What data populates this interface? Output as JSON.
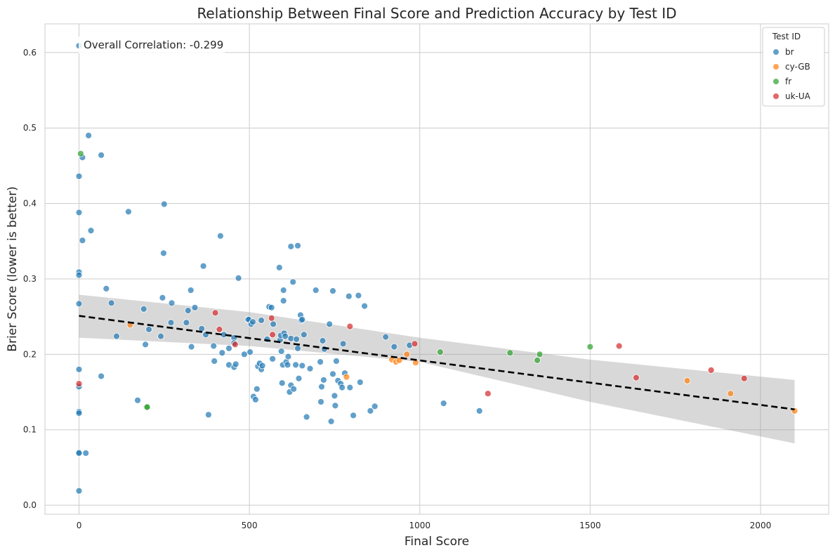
{
  "chart_data": {
    "type": "scatter",
    "title": "Relationship Between Final Score and Prediction Accuracy by Test ID",
    "xlabel": "Final Score",
    "ylabel": "Brier Score (lower is better)",
    "xlim": [
      -100,
      2200
    ],
    "ylim": [
      -0.012,
      0.638
    ],
    "xticks": [
      0,
      500,
      1000,
      1500,
      2000
    ],
    "xtick_labels": [
      "0",
      "500",
      "1000",
      "1500",
      "2000"
    ],
    "yticks": [
      0.0,
      0.1,
      0.2,
      0.3,
      0.4,
      0.5,
      0.6
    ],
    "ytick_labels": [
      "0.0",
      "0.1",
      "0.2",
      "0.3",
      "0.4",
      "0.5",
      "0.6"
    ],
    "grid": true,
    "annotation": "Overall Correlation: -0.299",
    "legend": {
      "title": "Test ID",
      "placement": "top-right"
    },
    "series": [
      {
        "name": "br",
        "color": "#1f77b4",
        "points": [
          [
            0,
            0.609
          ],
          [
            0,
            0.436
          ],
          [
            0,
            0.388
          ],
          [
            0,
            0.309
          ],
          [
            0,
            0.305
          ],
          [
            0,
            0.267
          ],
          [
            0,
            0.18
          ],
          [
            0,
            0.157
          ],
          [
            0,
            0.124
          ],
          [
            0,
            0.122
          ],
          [
            0,
            0.07
          ],
          [
            0,
            0.069
          ],
          [
            0,
            0.019
          ],
          [
            10,
            0.461
          ],
          [
            10,
            0.351
          ],
          [
            20,
            0.069
          ],
          [
            28,
            0.49
          ],
          [
            35,
            0.364
          ],
          [
            65,
            0.464
          ],
          [
            65,
            0.171
          ],
          [
            80,
            0.287
          ],
          [
            95,
            0.268
          ],
          [
            110,
            0.224
          ],
          [
            145,
            0.389
          ],
          [
            172,
            0.139
          ],
          [
            190,
            0.26
          ],
          [
            195,
            0.213
          ],
          [
            205,
            0.233
          ],
          [
            240,
            0.224
          ],
          [
            245,
            0.275
          ],
          [
            248,
            0.334
          ],
          [
            250,
            0.399
          ],
          [
            270,
            0.242
          ],
          [
            272,
            0.268
          ],
          [
            315,
            0.242
          ],
          [
            320,
            0.258
          ],
          [
            328,
            0.285
          ],
          [
            330,
            0.21
          ],
          [
            340,
            0.262
          ],
          [
            360,
            0.234
          ],
          [
            365,
            0.317
          ],
          [
            372,
            0.226
          ],
          [
            380,
            0.12
          ],
          [
            395,
            0.211
          ],
          [
            397,
            0.191
          ],
          [
            415,
            0.357
          ],
          [
            420,
            0.202
          ],
          [
            425,
            0.226
          ],
          [
            440,
            0.186
          ],
          [
            440,
            0.208
          ],
          [
            455,
            0.222
          ],
          [
            455,
            0.183
          ],
          [
            455,
            0.215
          ],
          [
            460,
            0.187
          ],
          [
            468,
            0.301
          ],
          [
            485,
            0.2
          ],
          [
            495,
            0.246
          ],
          [
            498,
            0.246
          ],
          [
            502,
            0.203
          ],
          [
            505,
            0.24
          ],
          [
            510,
            0.243
          ],
          [
            512,
            0.144
          ],
          [
            518,
            0.14
          ],
          [
            522,
            0.154
          ],
          [
            525,
            0.184
          ],
          [
            530,
            0.188
          ],
          [
            535,
            0.245
          ],
          [
            535,
            0.18
          ],
          [
            538,
            0.185
          ],
          [
            552,
            0.22
          ],
          [
            558,
            0.263
          ],
          [
            565,
            0.262
          ],
          [
            568,
            0.194
          ],
          [
            570,
            0.24
          ],
          [
            588,
            0.315
          ],
          [
            590,
            0.219
          ],
          [
            592,
            0.225
          ],
          [
            594,
            0.204
          ],
          [
            596,
            0.162
          ],
          [
            598,
            0.186
          ],
          [
            600,
            0.285
          ],
          [
            600,
            0.271
          ],
          [
            602,
            0.228
          ],
          [
            605,
            0.224
          ],
          [
            608,
            0.19
          ],
          [
            612,
            0.186
          ],
          [
            614,
            0.197
          ],
          [
            618,
            0.15
          ],
          [
            622,
            0.343
          ],
          [
            622,
            0.159
          ],
          [
            622,
            0.221
          ],
          [
            628,
            0.296
          ],
          [
            630,
            0.154
          ],
          [
            636,
            0.186
          ],
          [
            638,
            0.22
          ],
          [
            642,
            0.208
          ],
          [
            642,
            0.344
          ],
          [
            645,
            0.168
          ],
          [
            650,
            0.252
          ],
          [
            652,
            0.245
          ],
          [
            655,
            0.185
          ],
          [
            655,
            0.246
          ],
          [
            660,
            0.226
          ],
          [
            668,
            0.117
          ],
          [
            678,
            0.181
          ],
          [
            695,
            0.285
          ],
          [
            708,
            0.19
          ],
          [
            710,
            0.137
          ],
          [
            712,
            0.157
          ],
          [
            715,
            0.218
          ],
          [
            718,
            0.166
          ],
          [
            720,
            0.207
          ],
          [
            735,
            0.24
          ],
          [
            740,
            0.111
          ],
          [
            745,
            0.174
          ],
          [
            745,
            0.284
          ],
          [
            750,
            0.145
          ],
          [
            752,
            0.132
          ],
          [
            755,
            0.191
          ],
          [
            760,
            0.165
          ],
          [
            768,
            0.161
          ],
          [
            772,
            0.156
          ],
          [
            775,
            0.214
          ],
          [
            780,
            0.175
          ],
          [
            792,
            0.277
          ],
          [
            795,
            0.156
          ],
          [
            805,
            0.119
          ],
          [
            820,
            0.278
          ],
          [
            825,
            0.163
          ],
          [
            838,
            0.264
          ],
          [
            855,
            0.125
          ],
          [
            868,
            0.131
          ],
          [
            900,
            0.223
          ],
          [
            925,
            0.21
          ],
          [
            970,
            0.212
          ],
          [
            1070,
            0.135
          ],
          [
            1175,
            0.125
          ]
        ]
      },
      {
        "name": "cy-GB",
        "color": "#ff7f0e",
        "points": [
          [
            150,
            0.239
          ],
          [
            785,
            0.17
          ],
          [
            918,
            0.193
          ],
          [
            930,
            0.19
          ],
          [
            940,
            0.192
          ],
          [
            962,
            0.2
          ],
          [
            988,
            0.189
          ],
          [
            1785,
            0.165
          ],
          [
            1912,
            0.148
          ],
          [
            2100,
            0.125
          ]
        ]
      },
      {
        "name": "fr",
        "color": "#2ca02c",
        "points": [
          [
            5,
            0.466
          ],
          [
            198,
            0.13
          ],
          [
            200,
            0.13
          ],
          [
            1060,
            0.203
          ],
          [
            1265,
            0.202
          ],
          [
            1345,
            0.192
          ],
          [
            1352,
            0.2
          ],
          [
            1500,
            0.21
          ]
        ]
      },
      {
        "name": "uk-UA",
        "color": "#d62728",
        "points": [
          [
            0,
            0.161
          ],
          [
            400,
            0.255
          ],
          [
            412,
            0.233
          ],
          [
            458,
            0.213
          ],
          [
            565,
            0.248
          ],
          [
            568,
            0.226
          ],
          [
            795,
            0.237
          ],
          [
            985,
            0.214
          ],
          [
            1200,
            0.148
          ],
          [
            1585,
            0.211
          ],
          [
            1635,
            0.169
          ],
          [
            1855,
            0.179
          ],
          [
            1952,
            0.168
          ]
        ]
      }
    ],
    "regression": {
      "line": [
        [
          0,
          0.251
        ],
        [
          2100,
          0.127
        ]
      ],
      "ci_upper": [
        [
          0,
          0.279
        ],
        [
          500,
          0.256
        ],
        [
          1000,
          0.222
        ],
        [
          1500,
          0.193
        ],
        [
          2100,
          0.166
        ]
      ],
      "ci_lower": [
        [
          0,
          0.222
        ],
        [
          500,
          0.211
        ],
        [
          1000,
          0.19
        ],
        [
          1500,
          0.137
        ],
        [
          2100,
          0.082
        ]
      ]
    }
  }
}
